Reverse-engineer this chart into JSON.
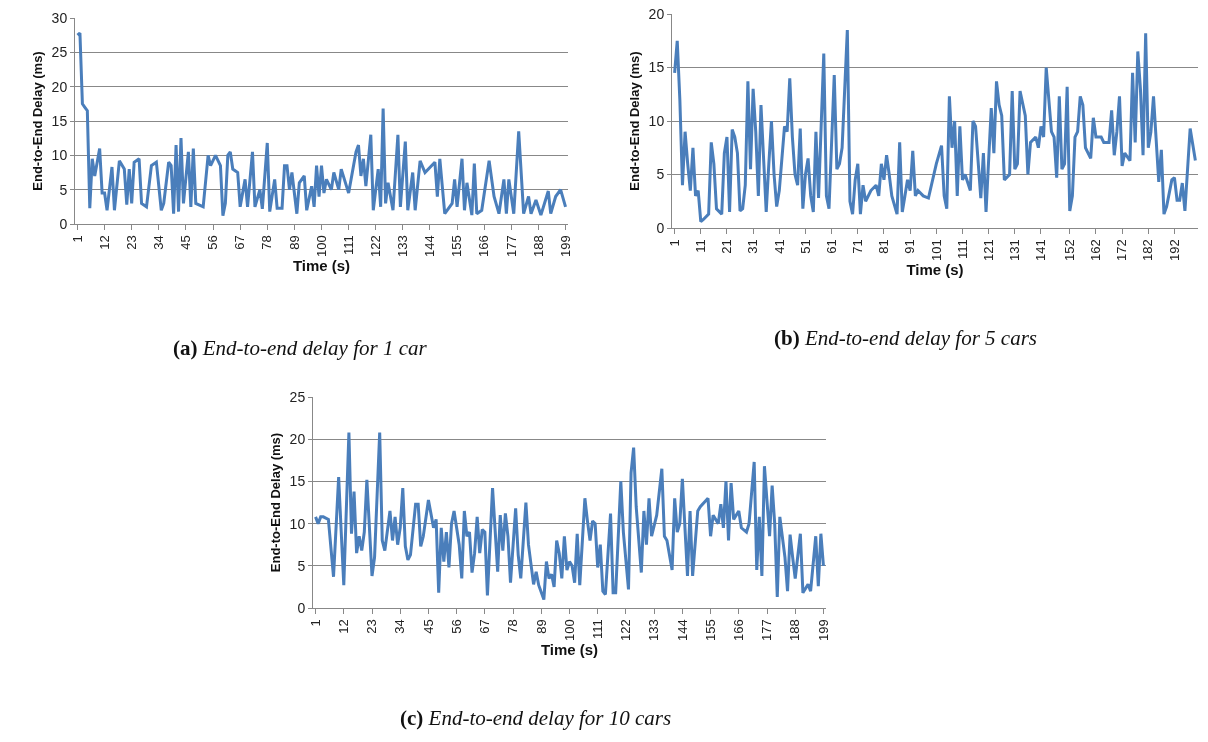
{
  "chart_data": [
    {
      "type": "line",
      "xlabel": "Time (s)",
      "ylabel": "End-to-End Delay (ms)",
      "xlim": [
        0,
        200
      ],
      "xticks": [
        1,
        12,
        23,
        34,
        45,
        56,
        67,
        78,
        89,
        100,
        111,
        122,
        133,
        144,
        155,
        166,
        177,
        188,
        199
      ],
      "ylim": [
        0,
        30
      ],
      "yticks": [
        0,
        5,
        10,
        15,
        20,
        25,
        30
      ],
      "grid": "y",
      "marker": "none",
      "line_style": "solid",
      "annotations": [
        "(a) End-to-end delay for 1 car"
      ],
      "x": [
        1,
        2,
        3,
        4,
        5,
        6,
        7,
        8,
        9,
        10,
        11,
        12,
        13,
        15,
        16,
        18,
        20,
        21,
        22,
        23,
        24,
        26,
        27,
        29,
        31,
        33,
        35,
        36,
        38,
        39,
        40,
        41,
        42,
        43,
        44,
        46,
        47,
        48,
        49,
        52,
        54,
        55,
        57,
        59,
        60,
        61,
        62,
        63,
        64,
        66,
        67,
        69,
        70,
        72,
        73,
        75,
        76,
        78,
        79,
        81,
        82,
        84,
        85,
        86,
        87,
        88,
        90,
        91,
        93,
        94,
        96,
        97,
        98,
        99,
        100,
        101,
        102,
        104,
        105,
        107,
        108,
        111,
        114,
        115,
        116,
        117,
        118,
        120,
        121,
        123,
        124,
        125,
        126,
        127,
        129,
        131,
        132,
        134,
        135,
        137,
        138,
        140,
        142,
        146,
        147,
        148,
        150,
        153,
        154,
        155,
        157,
        158,
        159,
        161,
        162,
        163,
        165,
        168,
        170,
        172,
        174,
        175,
        176,
        178,
        180,
        182,
        184,
        185,
        187,
        189,
        192,
        193,
        195,
        197,
        199
      ],
      "series": [
        {
          "color": "#4a7ebb",
          "values": [
            27.5,
            27.8,
            17.5,
            17,
            16.5,
            2.3,
            9.5,
            7,
            9,
            11,
            4.5,
            4.5,
            2,
            8.3,
            2,
            9.2,
            8,
            2.8,
            8,
            3,
            9,
            9.5,
            3,
            2.5,
            8.5,
            9,
            2,
            3,
            9,
            8.5,
            1.5,
            11.5,
            1.8,
            12.5,
            3,
            10.5,
            2.5,
            11,
            3,
            2.5,
            10,
            8.5,
            10,
            8.5,
            1.2,
            3,
            10,
            10.5,
            8,
            7.5,
            2.5,
            6.5,
            2.5,
            10.5,
            2.5,
            5,
            2.2,
            11.8,
            1.8,
            6.5,
            2.3,
            2.3,
            8.5,
            8.5,
            5,
            7.5,
            1.5,
            6,
            7,
            2,
            5.5,
            2.5,
            8.5,
            4,
            8.5,
            4.5,
            6.5,
            5,
            7.5,
            5,
            8,
            4.5,
            10.5,
            11.5,
            7,
            9.5,
            5.5,
            13,
            2,
            8,
            2.5,
            16.8,
            3,
            6,
            2,
            13,
            2.5,
            12,
            2,
            7.5,
            2,
            9.2,
            7.5,
            9,
            4,
            9.5,
            1.5,
            3,
            6.5,
            2.5,
            9.5,
            2,
            6,
            1.3,
            8.8,
            1.5,
            2,
            9.2,
            4,
            1.5,
            6.5,
            1.5,
            6.5,
            1.5,
            13.5,
            1.5,
            4,
            1.5,
            3.5,
            1.3,
            4.8,
            1.5,
            4,
            5,
            2.5
          ]
        }
      ]
    },
    {
      "type": "line",
      "xlabel": "Time (s)",
      "ylabel": "End-to-End Delay (ms)",
      "xlim": [
        0,
        201
      ],
      "xticks": [
        1,
        11,
        21,
        31,
        41,
        51,
        61,
        71,
        81,
        91,
        101,
        111,
        121,
        131,
        141,
        152,
        162,
        172,
        182,
        192
      ],
      "ylim": [
        0,
        20
      ],
      "yticks": [
        0,
        5,
        10,
        15,
        20
      ],
      "grid": "y",
      "marker": "none",
      "line_style": "solid",
      "annotations": [
        "(b) End-to-end delay for 5 cars"
      ],
      "x": [
        1,
        2,
        3,
        4,
        5,
        6,
        7,
        8,
        9,
        10,
        11,
        12,
        14,
        15,
        16,
        17,
        19,
        20,
        21,
        22,
        23,
        24,
        25,
        26,
        27,
        28,
        29,
        30,
        31,
        32,
        33,
        34,
        36,
        37,
        38,
        39,
        40,
        41,
        43,
        44,
        45,
        46,
        47,
        48,
        49,
        50,
        51,
        52,
        53,
        54,
        55,
        56,
        58,
        59,
        60,
        62,
        63,
        64,
        65,
        67,
        68,
        69,
        70,
        71,
        72,
        73,
        74,
        76,
        78,
        79,
        80,
        81,
        82,
        83,
        84,
        86,
        87,
        88,
        89,
        90,
        91,
        92,
        93,
        94,
        96,
        98,
        101,
        103,
        104,
        105,
        106,
        107,
        108,
        109,
        110,
        111,
        112,
        114,
        115,
        116,
        118,
        119,
        120,
        122,
        123,
        124,
        125,
        126,
        127,
        129,
        130,
        131,
        132,
        133,
        135,
        136,
        137,
        139,
        140,
        141,
        142,
        143,
        145,
        146,
        147,
        148,
        149,
        150,
        151,
        152,
        153,
        154,
        155,
        156,
        157,
        158,
        159,
        160,
        161,
        162,
        164,
        165,
        167,
        168,
        169,
        170,
        171,
        172,
        173,
        175,
        176,
        177,
        178,
        179,
        180,
        181,
        182,
        183,
        184,
        186,
        187,
        188,
        189,
        191,
        192,
        193,
        194,
        195,
        196,
        198,
        200
      ],
      "series": [
        {
          "color": "#4a7ebb",
          "values": [
            14.5,
            17.5,
            12,
            4,
            9,
            6,
            3.5,
            7.5,
            3,
            3.5,
            0.6,
            0.8,
            1.3,
            8,
            6,
            1.8,
            1.3,
            7,
            8.5,
            1.5,
            9.2,
            8.5,
            7,
            1.6,
            1.8,
            4,
            13.7,
            5.5,
            13,
            9,
            3,
            11.5,
            1.5,
            6,
            10,
            5,
            2,
            3.5,
            9.5,
            9,
            14,
            8.5,
            5,
            4,
            9.3,
            1.8,
            5,
            6.5,
            3,
            1.5,
            9,
            2.8,
            16.3,
            3,
            1.8,
            14.3,
            5.5,
            6,
            7.5,
            18.5,
            2.5,
            1.3,
            4.5,
            6,
            1.3,
            4,
            2.5,
            3.5,
            4,
            3,
            6,
            4.5,
            6.8,
            5,
            3,
            1.3,
            8,
            1.5,
            3,
            4.5,
            3.5,
            7.2,
            3,
            3.5,
            3,
            2.8,
            6,
            7.7,
            3,
            1.8,
            12.3,
            7.5,
            10,
            3,
            9.5,
            4.5,
            5,
            3.5,
            10,
            9.5,
            2.8,
            7,
            1.5,
            11.2,
            7,
            13.7,
            11.5,
            10.5,
            4.5,
            5,
            12.8,
            5.5,
            6,
            12.8,
            10.5,
            5,
            8,
            8.5,
            7.5,
            9.5,
            8.5,
            15,
            9,
            8.5,
            4.7,
            12.3,
            5.5,
            6,
            13.2,
            1.6,
            3,
            8.5,
            9,
            12.3,
            11.5,
            7.5,
            7,
            6.5,
            10.3,
            8.5,
            8.5,
            8,
            8,
            11,
            6.8,
            9,
            12.3,
            5.8,
            7,
            6.3,
            14.5,
            8,
            16.5,
            13,
            6.8,
            18.2,
            7.5,
            9,
            12.3,
            4.3,
            7.3,
            1.3,
            2,
            4.5,
            4.7,
            2.6,
            2.6,
            4.2,
            1.6,
            9.3,
            6.3
          ]
        }
      ]
    },
    {
      "type": "line",
      "xlabel": "Time (s)",
      "ylabel": "End-to-End Delay (ms)",
      "xlim": [
        0,
        200
      ],
      "xticks": [
        1,
        12,
        23,
        34,
        45,
        56,
        67,
        78,
        89,
        100,
        111,
        122,
        133,
        144,
        155,
        166,
        177,
        188,
        199
      ],
      "ylim": [
        0,
        25
      ],
      "yticks": [
        0,
        5,
        10,
        15,
        20,
        25
      ],
      "grid": "y",
      "marker": "none",
      "line_style": "solid",
      "annotations": [
        "(c) End-to-end delay for 10 cars"
      ],
      "x": [
        1,
        2,
        3,
        4,
        6,
        8,
        10,
        11,
        12,
        14,
        15,
        16,
        17,
        18,
        19,
        20,
        21,
        23,
        24,
        26,
        27,
        28,
        30,
        31,
        32,
        33,
        34,
        35,
        36,
        37,
        38,
        40,
        41,
        42,
        43,
        45,
        47,
        48,
        49,
        50,
        51,
        52,
        53,
        54,
        55,
        57,
        58,
        59,
        60,
        61,
        62,
        63,
        64,
        65,
        66,
        67,
        68,
        70,
        72,
        73,
        74,
        75,
        76,
        77,
        79,
        80,
        81,
        83,
        84,
        86,
        87,
        88,
        90,
        91,
        92,
        93,
        94,
        95,
        96,
        97,
        98,
        99,
        100,
        101,
        102,
        103,
        104,
        106,
        107,
        108,
        109,
        110,
        111,
        112,
        113,
        114,
        116,
        117,
        118,
        120,
        121,
        123,
        124,
        125,
        126,
        128,
        129,
        130,
        131,
        132,
        134,
        136,
        137,
        138,
        140,
        141,
        142,
        143,
        144,
        146,
        147,
        148,
        150,
        151,
        154,
        155,
        156,
        158,
        159,
        160,
        161,
        162,
        163,
        164,
        166,
        167,
        169,
        170,
        172,
        173,
        174,
        175,
        176,
        178,
        179,
        180,
        181,
        182,
        184,
        185,
        186,
        187,
        188,
        190,
        191,
        193,
        194,
        196,
        197,
        198,
        199
      ],
      "series": [
        {
          "color": "#4a7ebb",
          "values": [
            10.8,
            10,
            10.8,
            10.8,
            10.5,
            3.7,
            15.5,
            9,
            2.7,
            20.8,
            8.8,
            13.8,
            6.5,
            8.5,
            6.8,
            9,
            15.2,
            3.8,
            6,
            20.8,
            8,
            6.8,
            11.5,
            8,
            10.8,
            7.5,
            9.5,
            14.2,
            7.3,
            5.7,
            6.3,
            12.3,
            12.3,
            7.3,
            8.5,
            12.8,
            9.5,
            10.5,
            1.8,
            9.5,
            5.5,
            9,
            4.8,
            10,
            11.5,
            7.5,
            3.5,
            11.5,
            8.5,
            9,
            4.2,
            6.5,
            10.8,
            6.5,
            9.3,
            9,
            1.5,
            14.2,
            4.3,
            11,
            6.8,
            11.2,
            8.5,
            3,
            11.8,
            6.3,
            3.5,
            12.5,
            7.5,
            2.8,
            4.3,
            2.7,
            1,
            5.5,
            3.5,
            4,
            2.5,
            8,
            6.5,
            3.5,
            8.5,
            4.5,
            5.5,
            5,
            3,
            8.8,
            2.7,
            13,
            10.3,
            8,
            10.3,
            10,
            4.8,
            7.5,
            2,
            1.6,
            11.2,
            1.8,
            1.8,
            15,
            9,
            2.2,
            16,
            19,
            12,
            4.2,
            11.5,
            7.5,
            13,
            8.5,
            11,
            16.5,
            8.5,
            8,
            4.5,
            13,
            9,
            10,
            15.3,
            3.8,
            11.5,
            3.8,
            11.5,
            12,
            13,
            8.5,
            11,
            10,
            12.3,
            9.5,
            15,
            8,
            14.8,
            10.5,
            11.5,
            9.5,
            9,
            10,
            17.3,
            4.5,
            10.8,
            3.8,
            16.8,
            8.5,
            14.5,
            10,
            1.3,
            10.8,
            6,
            2,
            8.7,
            6,
            3.5,
            8.8,
            1.8,
            2.8,
            2,
            8.5,
            2.6,
            8.8,
            5
          ]
        }
      ]
    }
  ]
}
